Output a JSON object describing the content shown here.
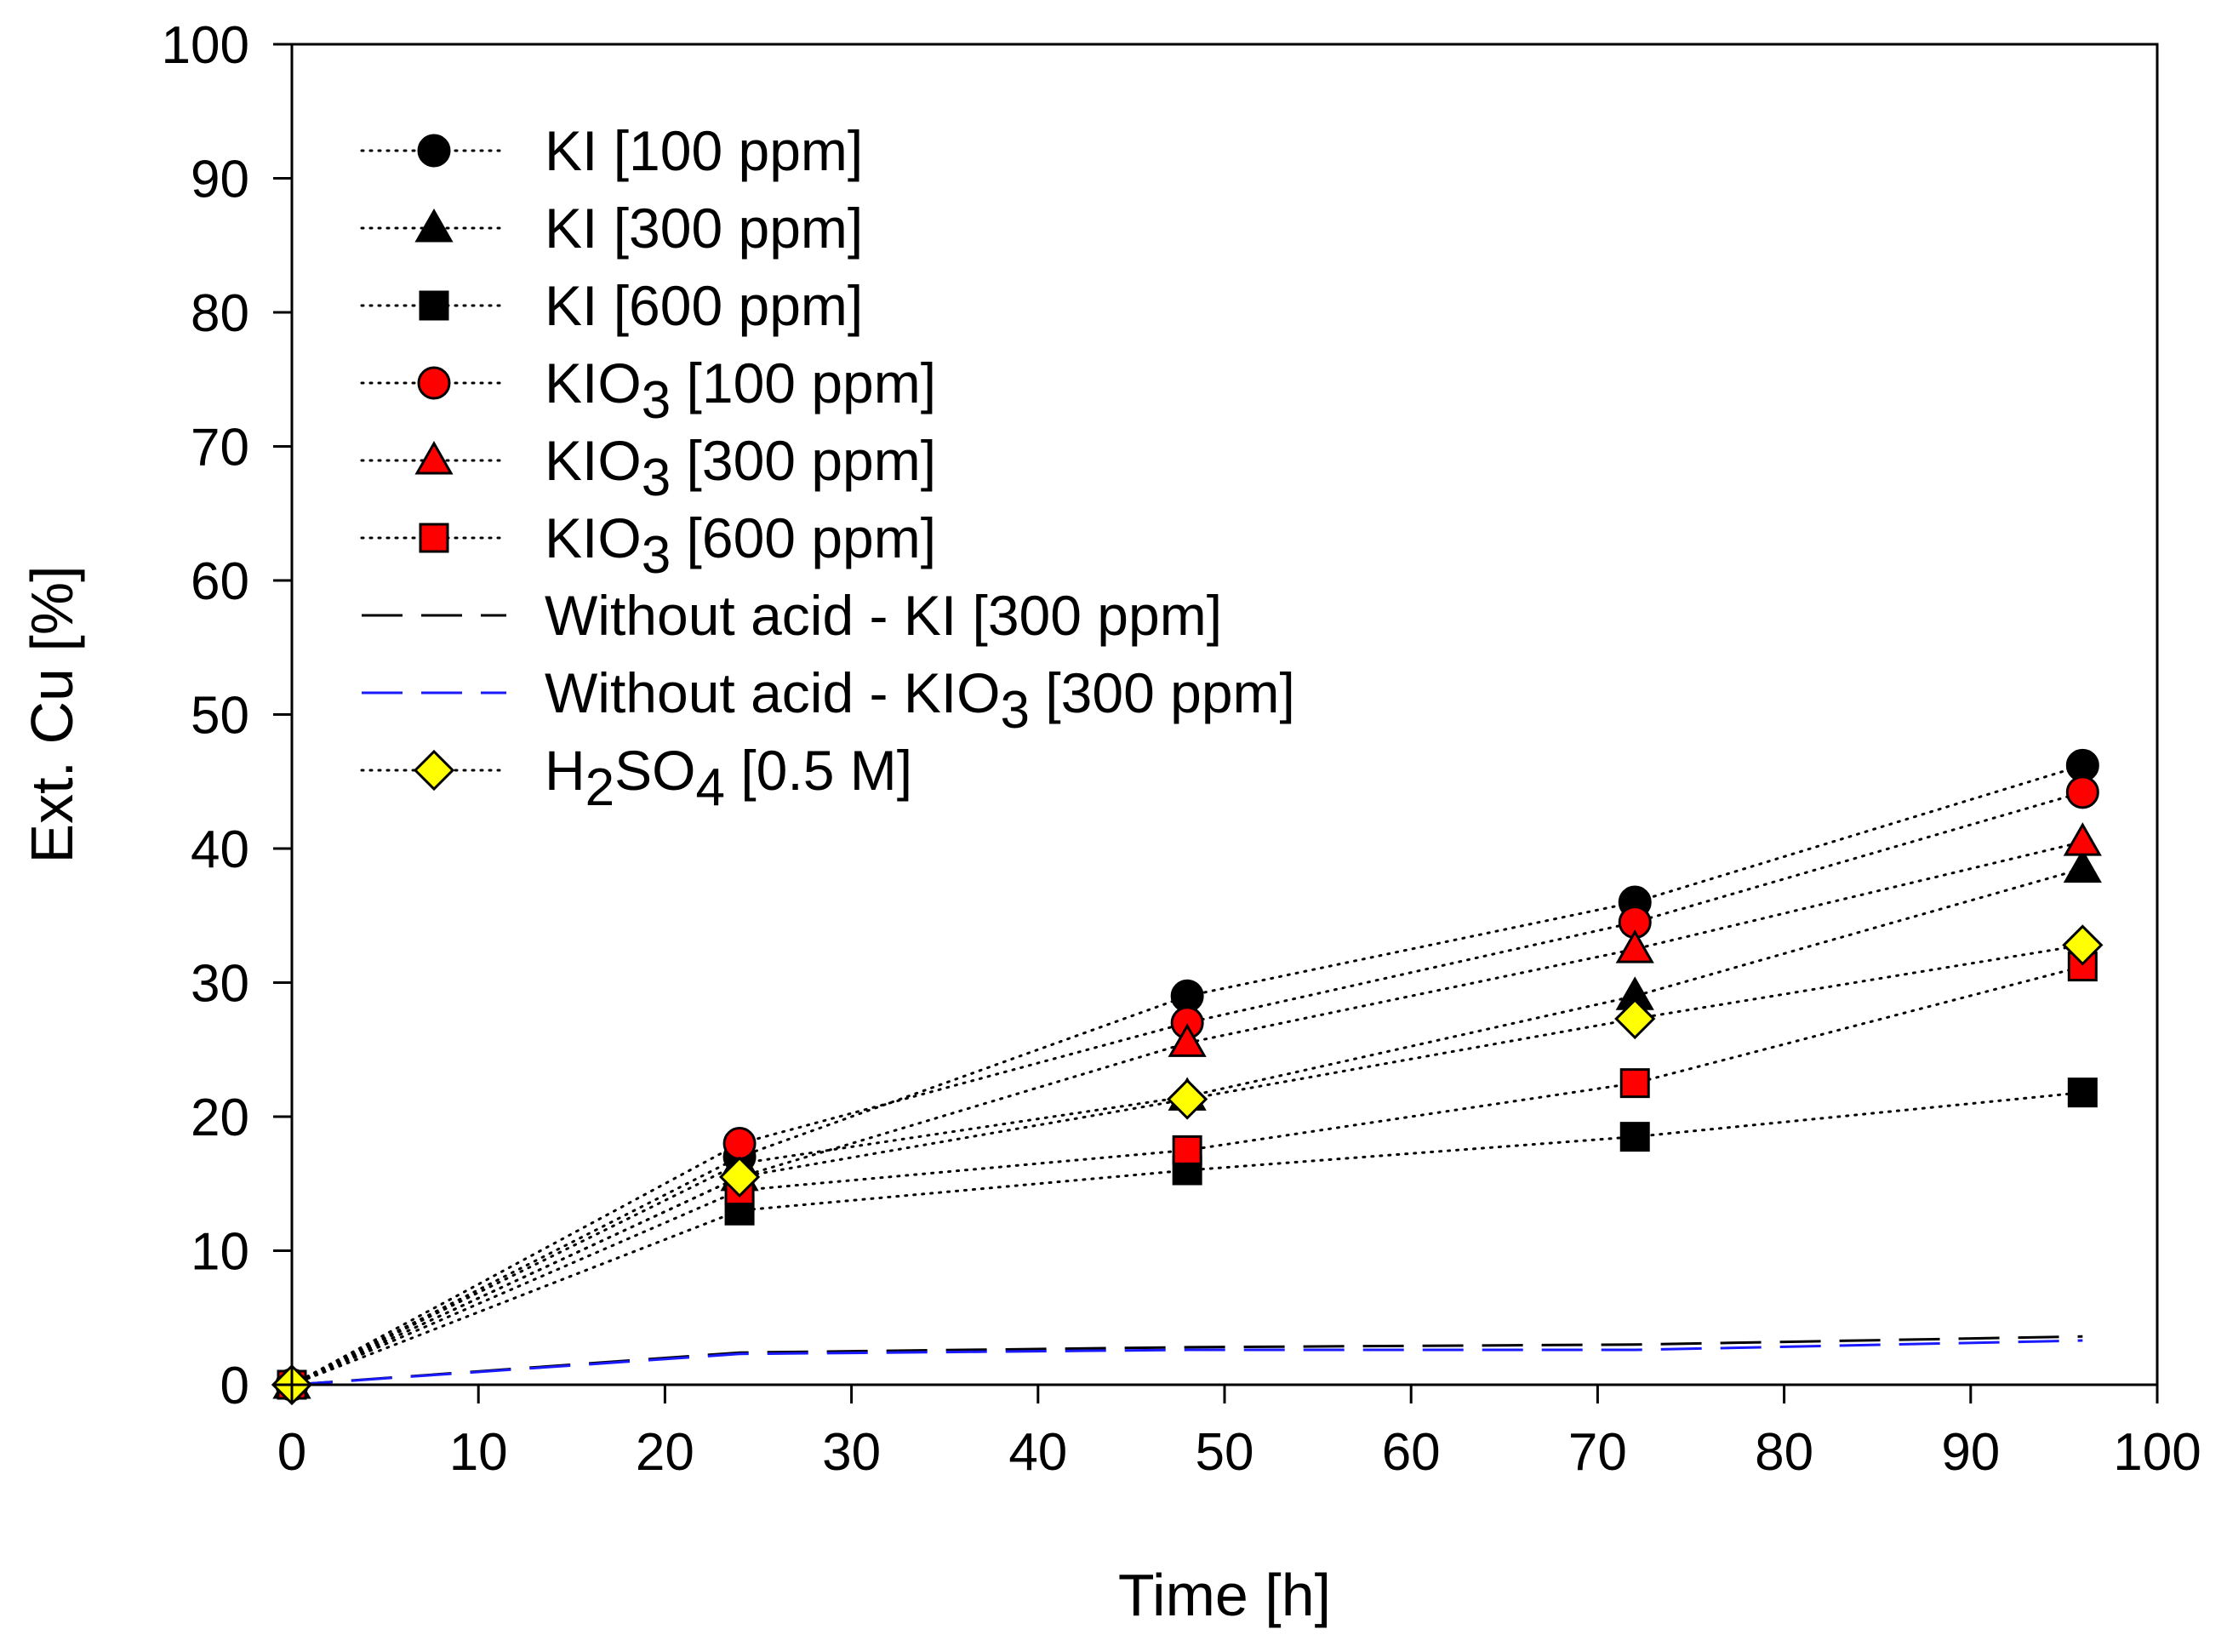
{
  "chart_data": {
    "type": "line",
    "xlabel": "Time [h]",
    "ylabel": "Ext. Cu [%]",
    "xlim": [
      0,
      100
    ],
    "ylim": [
      0,
      100
    ],
    "xticks": [
      0,
      10,
      20,
      30,
      40,
      50,
      60,
      70,
      80,
      90,
      100
    ],
    "yticks": [
      0,
      10,
      20,
      30,
      40,
      50,
      60,
      70,
      80,
      90,
      100
    ],
    "grid": false,
    "legend_position": "top-left",
    "series": [
      {
        "name": "KI [100 ppm]",
        "legend": [
          "KI [100 ppm]"
        ],
        "marker": "circle",
        "fill": "#000000",
        "line": "dotted",
        "color": "#000000",
        "x": [
          0,
          24,
          48,
          72,
          96
        ],
        "y": [
          0,
          17.0,
          29.0,
          36.0,
          46.2
        ]
      },
      {
        "name": "KI [300 ppm]",
        "legend": [
          "KI [300 ppm]"
        ],
        "marker": "triangle",
        "fill": "#000000",
        "line": "dotted",
        "color": "#000000",
        "x": [
          0,
          24,
          48,
          72,
          96
        ],
        "y": [
          0,
          16.5,
          21.5,
          29.0,
          38.5
        ]
      },
      {
        "name": "KI [600 ppm]",
        "legend": [
          "KI [600 ppm]"
        ],
        "marker": "square",
        "fill": "#000000",
        "line": "dotted",
        "color": "#000000",
        "x": [
          0,
          24,
          48,
          72,
          96
        ],
        "y": [
          0,
          13.0,
          16.0,
          18.5,
          21.8
        ]
      },
      {
        "name": "KIO3 [100 ppm]",
        "legend": [
          "KIO",
          "3",
          " [100 ppm]"
        ],
        "marker": "circle",
        "fill": "#ff0000",
        "line": "dotted",
        "color": "#000000",
        "x": [
          0,
          24,
          48,
          72,
          96
        ],
        "y": [
          0,
          18.0,
          27.0,
          34.5,
          44.2
        ]
      },
      {
        "name": "KIO3 [300 ppm]",
        "legend": [
          "KIO",
          "3",
          " [300 ppm]"
        ],
        "marker": "triangle",
        "fill": "#ff0000",
        "line": "dotted",
        "color": "#000000",
        "x": [
          0,
          24,
          48,
          72,
          96
        ],
        "y": [
          0,
          15.5,
          25.5,
          32.5,
          40.5
        ]
      },
      {
        "name": "KIO3 [600 ppm]",
        "legend": [
          "KIO",
          "3",
          " [600 ppm]"
        ],
        "marker": "square",
        "fill": "#ff0000",
        "line": "dotted",
        "color": "#000000",
        "x": [
          0,
          24,
          48,
          72,
          96
        ],
        "y": [
          0,
          14.5,
          17.5,
          22.5,
          31.2
        ]
      },
      {
        "name": "Without acid - KI [300 ppm]",
        "legend": [
          "Without acid - KI [300 ppm]"
        ],
        "marker": "none",
        "line": "dashed",
        "color": "#000000",
        "x": [
          0,
          24,
          48,
          72,
          96
        ],
        "y": [
          0,
          2.4,
          2.8,
          3.0,
          3.6
        ]
      },
      {
        "name": "Without acid - KIO3 [300 ppm]",
        "legend": [
          "Without acid - KIO",
          "3",
          " [300 ppm]"
        ],
        "marker": "none",
        "line": "dashed",
        "color": "#1a1aff",
        "x": [
          0,
          24,
          48,
          72,
          96
        ],
        "y": [
          0,
          2.3,
          2.6,
          2.6,
          3.3
        ]
      },
      {
        "name": "H2SO4 [0.5 M]",
        "legend": [
          "H",
          "2",
          "SO",
          "4",
          " [0.5 M]"
        ],
        "marker": "diamond",
        "fill": "#ffff00",
        "line": "dotted",
        "color": "#000000",
        "x": [
          0,
          24,
          48,
          72,
          96
        ],
        "y": [
          0,
          15.5,
          21.3,
          27.3,
          32.8
        ]
      }
    ]
  }
}
